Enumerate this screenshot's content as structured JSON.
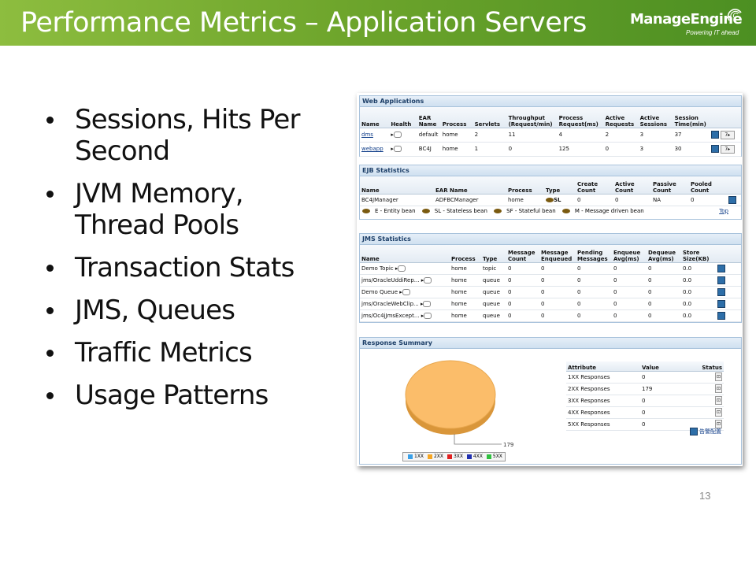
{
  "title": "Performance Metrics – Application Servers",
  "logo": {
    "name": "ManageEngine",
    "tagline": "Powering IT ahead"
  },
  "bullets": [
    "Sessions, Hits Per Second",
    "JVM Memory, Thread Pools",
    "Transaction Stats",
    "JMS, Queues",
    "Traffic Metrics",
    "Usage Patterns"
  ],
  "page_number": "13",
  "web_apps": {
    "title": "Web Applications",
    "columns": [
      "Name",
      "Health",
      "EAR Name",
      "Process",
      "Servlets",
      "Throughput (Request/min)",
      "Process Request(ms)",
      "Active Requests",
      "Active Sessions",
      "Session Time(min)"
    ],
    "rows": [
      [
        "dms",
        "",
        "default",
        "home",
        "2",
        "11",
        "4",
        "2",
        "3",
        "37"
      ],
      [
        "webapp",
        "",
        "BC4J",
        "home",
        "1",
        "0",
        "125",
        "0",
        "3",
        "30"
      ]
    ]
  },
  "ejb": {
    "title": "EJB Statistics",
    "columns": [
      "Name",
      "EAR Name",
      "Process",
      "Type",
      "Create Count",
      "Active Count",
      "Passive Count",
      "Pooled Count"
    ],
    "rows": [
      [
        "BC4JManager",
        "ADFBCManager",
        "home",
        "SL",
        "0",
        "0",
        "NA",
        "0"
      ]
    ],
    "legend": [
      "E - Entity bean",
      "SL - Stateless bean",
      "SF - Stateful bean",
      "M - Message driven bean"
    ],
    "top_link": "Top"
  },
  "jms": {
    "title": "JMS Statistics",
    "columns": [
      "Name",
      "Process",
      "Type",
      "Message Count",
      "Message Enqueued",
      "Pending Messages",
      "Enqueue Avg(ms)",
      "Dequeue Avg(ms)",
      "Store Size(KB)"
    ],
    "rows": [
      [
        "Demo Topic",
        "home",
        "topic",
        "0",
        "0",
        "0",
        "0",
        "0",
        "0.0"
      ],
      [
        "jms/OracleUddiRep...",
        "home",
        "queue",
        "0",
        "0",
        "0",
        "0",
        "0",
        "0.0"
      ],
      [
        "Demo Queue",
        "home",
        "queue",
        "0",
        "0",
        "0",
        "0",
        "0",
        "0.0"
      ],
      [
        "jms/OracleWebClip...",
        "home",
        "queue",
        "0",
        "0",
        "0",
        "0",
        "0",
        "0.0"
      ],
      [
        "jms/Oc4jJmsExcept...",
        "home",
        "queue",
        "0",
        "0",
        "0",
        "0",
        "0",
        "0.0"
      ]
    ]
  },
  "response": {
    "title": "Response Summary",
    "columns": [
      "Attribute",
      "Value",
      "Status"
    ],
    "rows": [
      [
        "1XX Responses",
        "0"
      ],
      [
        "2XX Responses",
        "179"
      ],
      [
        "3XX Responses",
        "0"
      ],
      [
        "4XX Responses",
        "0"
      ],
      [
        "5XX Responses",
        "0"
      ]
    ],
    "write_link": "告警配置",
    "pie_label": "179",
    "pie_legend": [
      {
        "label": "1XX",
        "color": "#3aa0e8"
      },
      {
        "label": "2XX",
        "color": "#f6a623"
      },
      {
        "label": "3XX",
        "color": "#e02020"
      },
      {
        "label": "4XX",
        "color": "#2030b0"
      },
      {
        "label": "5XX",
        "color": "#30c040"
      }
    ]
  },
  "colors": {
    "title_bar": "#6ea52c",
    "pie_fill": "#fbbd6a",
    "pie_edge": "#d9963a"
  }
}
